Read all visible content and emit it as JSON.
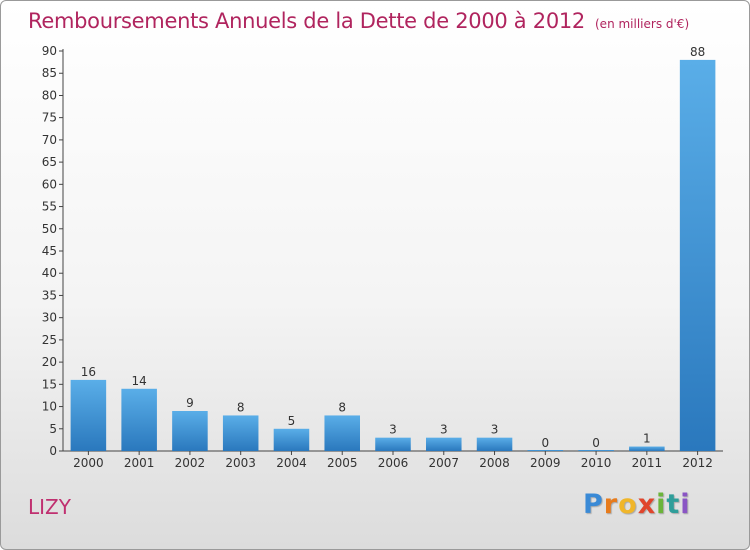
{
  "chart_data": {
    "type": "bar",
    "title": "Remboursements Annuels de la Dette de 2000 à 2012",
    "subtitle": "(en milliers d'€)",
    "categories": [
      "2000",
      "2001",
      "2002",
      "2003",
      "2004",
      "2005",
      "2006",
      "2007",
      "2008",
      "2009",
      "2010",
      "2011",
      "2012"
    ],
    "values": [
      16,
      14,
      9,
      8,
      5,
      8,
      3,
      3,
      3,
      0,
      0,
      1,
      88
    ],
    "ylim": [
      0,
      90
    ],
    "ytick_step": 5,
    "xlabel": "",
    "ylabel": "",
    "grid": false,
    "bar_color": "#3a92d6"
  },
  "place_name": "LIZY",
  "logo": {
    "text": "Proxiti",
    "letters": [
      "P",
      "r",
      "o",
      "x",
      "i",
      "t",
      "i"
    ]
  }
}
